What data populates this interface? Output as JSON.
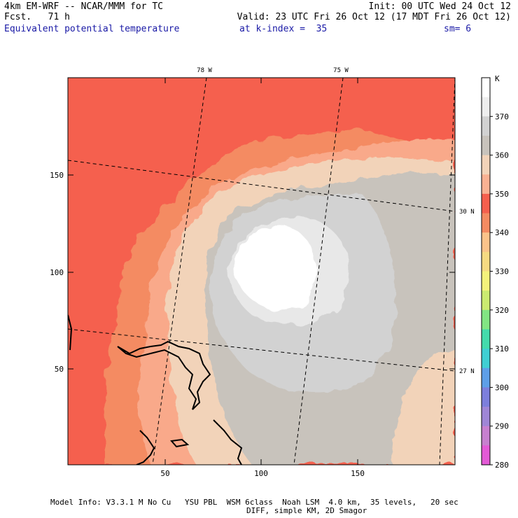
{
  "header": {
    "model": "4km EM-WRF -- NCAR/MMM for TC",
    "forecast": "Fcst.   71 h",
    "init": "Init: 00 UTC Wed 24 Oct 12",
    "valid": "Valid: 23 UTC Fri 26 Oct 12 (17 MDT Fri 26 Oct 12)",
    "field": "Equivalent potential temperature",
    "kindex": "at k-index =  35",
    "smoothing": "sm= 6"
  },
  "map": {
    "x_ticks": [
      "50",
      "100",
      "150"
    ],
    "y_ticks": [
      "150",
      "100",
      "50"
    ],
    "lon_labels": [
      "78 W",
      "75 W"
    ],
    "lat_labels": [
      "30 N",
      "27 N"
    ],
    "grid_x_range": [
      0,
      197
    ],
    "grid_y_range": [
      0,
      197
    ]
  },
  "colorbar": {
    "unit": "K",
    "labels": [
      "370",
      "360",
      "350",
      "340",
      "330",
      "320",
      "310",
      "300",
      "290",
      "280"
    ],
    "colors": [
      "#ffffff",
      "#eeeeee",
      "#d2d2d2",
      "#c8c3bc",
      "#f2d3b9",
      "#f9b193",
      "#f5604e",
      "#f48b62",
      "#fbc38a",
      "#f6da82",
      "#f4f27b",
      "#cbeb70",
      "#82e583",
      "#44dbac",
      "#40cfd3",
      "#5e9fe8",
      "#7d7fdc",
      "#9f86d6",
      "#c780cf",
      "#e35ad6"
    ]
  },
  "footer": {
    "line1": "Model Info: V3.3.1 M No Cu   YSU PBL  WSM 6class  Noah LSM  4.0 km,  35 levels,   20 sec",
    "line2": "DIFF, simple KM, 2D Smagor"
  }
}
